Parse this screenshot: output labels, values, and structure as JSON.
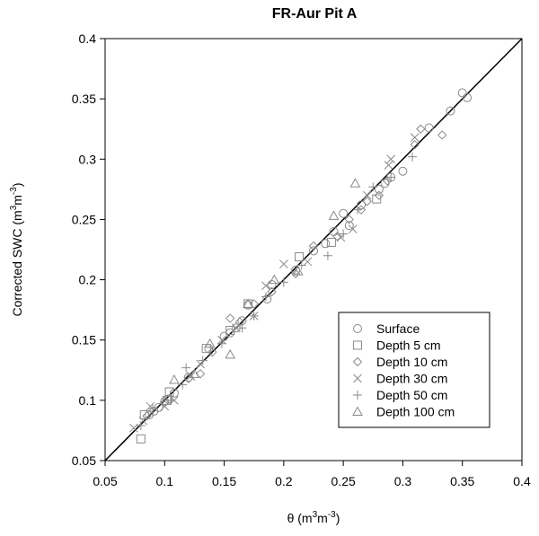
{
  "chart_data": {
    "type": "scatter",
    "title": "FR-Aur Pit A",
    "xlabel": "θ (m³m⁻³)",
    "ylabel": "Corrected SWC (m³m⁻³)",
    "xlabel_parts": {
      "base": "θ (m",
      "sup1": "3",
      "mid": "m",
      "sup2": "-3",
      "end": ")"
    },
    "ylabel_parts": {
      "base": "Corrected SWC (m",
      "sup1": "3",
      "mid": "m",
      "sup2": "-3",
      "end": ")"
    },
    "xlim": [
      0.05,
      0.4
    ],
    "ylim": [
      0.05,
      0.4
    ],
    "xticks": [
      "0.05",
      "0.1",
      "0.15",
      "0.2",
      "0.25",
      "0.3",
      "0.35",
      "0.4"
    ],
    "yticks": [
      "0.05",
      "0.1",
      "0.15",
      "0.2",
      "0.25",
      "0.3",
      "0.35",
      "0.4"
    ],
    "grid": false,
    "legend_position": "bottom-right",
    "reference_line": {
      "x": [
        0.05,
        0.4
      ],
      "y": [
        0.05,
        0.4
      ]
    },
    "colors": {
      "markers": "#8a8a8a",
      "line": "#000000"
    },
    "series": [
      {
        "name": "Surface",
        "marker": "circle",
        "points": [
          [
            0.087,
            0.088
          ],
          [
            0.091,
            0.091
          ],
          [
            0.095,
            0.094
          ],
          [
            0.1,
            0.099
          ],
          [
            0.103,
            0.101
          ],
          [
            0.108,
            0.106
          ],
          [
            0.12,
            0.119
          ],
          [
            0.137,
            0.143
          ],
          [
            0.15,
            0.153
          ],
          [
            0.155,
            0.156
          ],
          [
            0.16,
            0.16
          ],
          [
            0.165,
            0.166
          ],
          [
            0.17,
            0.179
          ],
          [
            0.186,
            0.184
          ],
          [
            0.19,
            0.196
          ],
          [
            0.21,
            0.208
          ],
          [
            0.225,
            0.224
          ],
          [
            0.235,
            0.23
          ],
          [
            0.242,
            0.24
          ],
          [
            0.25,
            0.255
          ],
          [
            0.255,
            0.245
          ],
          [
            0.265,
            0.262
          ],
          [
            0.28,
            0.275
          ],
          [
            0.285,
            0.28
          ],
          [
            0.29,
            0.285
          ],
          [
            0.3,
            0.29
          ],
          [
            0.322,
            0.326
          ],
          [
            0.34,
            0.34
          ],
          [
            0.35,
            0.355
          ],
          [
            0.354,
            0.351
          ]
        ]
      },
      {
        "name": "Depth 5 cm",
        "marker": "square",
        "points": [
          [
            0.08,
            0.068
          ],
          [
            0.083,
            0.088
          ],
          [
            0.102,
            0.1
          ],
          [
            0.104,
            0.107
          ],
          [
            0.135,
            0.143
          ],
          [
            0.155,
            0.158
          ],
          [
            0.17,
            0.18
          ],
          [
            0.213,
            0.219
          ],
          [
            0.24,
            0.231
          ],
          [
            0.278,
            0.267
          ]
        ]
      },
      {
        "name": "Depth 10 cm",
        "marker": "diamond",
        "points": [
          [
            0.085,
            0.087
          ],
          [
            0.1,
            0.098
          ],
          [
            0.12,
            0.118
          ],
          [
            0.13,
            0.122
          ],
          [
            0.14,
            0.14
          ],
          [
            0.155,
            0.168
          ],
          [
            0.163,
            0.165
          ],
          [
            0.175,
            0.18
          ],
          [
            0.19,
            0.19
          ],
          [
            0.21,
            0.205
          ],
          [
            0.225,
            0.228
          ],
          [
            0.245,
            0.236
          ],
          [
            0.255,
            0.25
          ],
          [
            0.265,
            0.258
          ],
          [
            0.27,
            0.265
          ],
          [
            0.28,
            0.27
          ],
          [
            0.287,
            0.282
          ],
          [
            0.31,
            0.312
          ],
          [
            0.315,
            0.325
          ],
          [
            0.333,
            0.32
          ]
        ]
      },
      {
        "name": "Depth 30 cm",
        "marker": "cross",
        "points": [
          [
            0.074,
            0.077
          ],
          [
            0.082,
            0.083
          ],
          [
            0.088,
            0.095
          ],
          [
            0.1,
            0.095
          ],
          [
            0.108,
            0.1
          ],
          [
            0.122,
            0.12
          ],
          [
            0.13,
            0.13
          ],
          [
            0.148,
            0.15
          ],
          [
            0.16,
            0.16
          ],
          [
            0.175,
            0.17
          ],
          [
            0.185,
            0.195
          ],
          [
            0.2,
            0.213
          ],
          [
            0.22,
            0.215
          ],
          [
            0.248,
            0.235
          ],
          [
            0.258,
            0.242
          ],
          [
            0.27,
            0.27
          ],
          [
            0.288,
            0.295
          ],
          [
            0.29,
            0.3
          ],
          [
            0.31,
            0.318
          ]
        ]
      },
      {
        "name": "Depth 50 cm",
        "marker": "plus",
        "points": [
          [
            0.08,
            0.079
          ],
          [
            0.09,
            0.093
          ],
          [
            0.105,
            0.1
          ],
          [
            0.115,
            0.113
          ],
          [
            0.118,
            0.127
          ],
          [
            0.132,
            0.133
          ],
          [
            0.148,
            0.147
          ],
          [
            0.165,
            0.16
          ],
          [
            0.175,
            0.17
          ],
          [
            0.185,
            0.186
          ],
          [
            0.2,
            0.198
          ],
          [
            0.215,
            0.212
          ],
          [
            0.237,
            0.22
          ],
          [
            0.25,
            0.238
          ],
          [
            0.262,
            0.258
          ],
          [
            0.275,
            0.277
          ],
          [
            0.29,
            0.285
          ],
          [
            0.308,
            0.302
          ]
        ]
      },
      {
        "name": "Depth 100 cm",
        "marker": "triangle",
        "points": [
          [
            0.108,
            0.117
          ],
          [
            0.125,
            0.122
          ],
          [
            0.138,
            0.147
          ],
          [
            0.155,
            0.138
          ],
          [
            0.17,
            0.18
          ],
          [
            0.192,
            0.2
          ],
          [
            0.212,
            0.207
          ],
          [
            0.242,
            0.253
          ],
          [
            0.26,
            0.28
          ]
        ]
      }
    ]
  }
}
